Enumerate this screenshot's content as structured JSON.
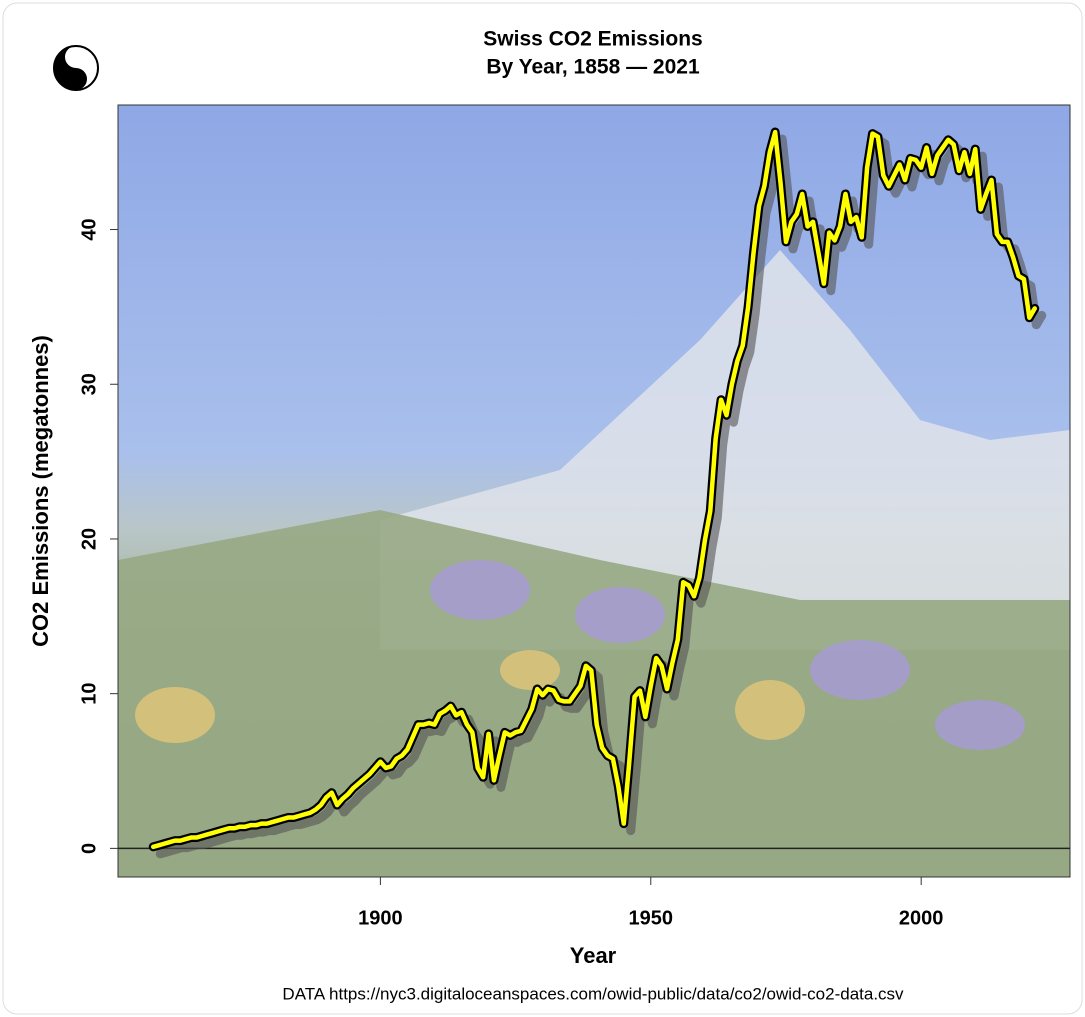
{
  "chart_data": {
    "type": "line",
    "title": "Swiss CO2 Emissions",
    "subtitle": "By Year, 1858 — 2021",
    "x_label": "Year",
    "y_label": "CO2 Emissions (megatonnes)",
    "caption": "DATA https://nyc3.digitaloceanspaces.com/owid-public/data/co2/owid-co2-data.csv",
    "x": [
      1858,
      1859,
      1860,
      1861,
      1862,
      1863,
      1864,
      1865,
      1866,
      1867,
      1868,
      1869,
      1870,
      1871,
      1872,
      1873,
      1874,
      1875,
      1876,
      1877,
      1878,
      1879,
      1880,
      1881,
      1882,
      1883,
      1884,
      1885,
      1886,
      1887,
      1888,
      1889,
      1890,
      1891,
      1892,
      1893,
      1894,
      1895,
      1896,
      1897,
      1898,
      1899,
      1900,
      1901,
      1902,
      1903,
      1904,
      1905,
      1906,
      1907,
      1908,
      1909,
      1910,
      1911,
      1912,
      1913,
      1914,
      1915,
      1916,
      1917,
      1918,
      1919,
      1920,
      1921,
      1922,
      1923,
      1924,
      1925,
      1926,
      1927,
      1928,
      1929,
      1930,
      1931,
      1932,
      1933,
      1934,
      1935,
      1936,
      1937,
      1938,
      1939,
      1940,
      1941,
      1942,
      1943,
      1944,
      1945,
      1946,
      1947,
      1948,
      1949,
      1950,
      1951,
      1952,
      1953,
      1954,
      1955,
      1956,
      1957,
      1958,
      1959,
      1960,
      1961,
      1962,
      1963,
      1964,
      1965,
      1966,
      1967,
      1968,
      1969,
      1970,
      1971,
      1972,
      1973,
      1974,
      1975,
      1976,
      1977,
      1978,
      1979,
      1980,
      1981,
      1982,
      1983,
      1984,
      1985,
      1986,
      1987,
      1988,
      1989,
      1990,
      1991,
      1992,
      1993,
      1994,
      1995,
      1996,
      1997,
      1998,
      1999,
      2000,
      2001,
      2002,
      2003,
      2004,
      2005,
      2006,
      2007,
      2008,
      2009,
      2010,
      2011,
      2012,
      2013,
      2014,
      2015,
      2016,
      2017,
      2018,
      2019,
      2020,
      2021
    ],
    "series": [
      {
        "color": "#ffff00",
        "values": [
          0.1,
          0.2,
          0.3,
          0.4,
          0.5,
          0.5,
          0.6,
          0.7,
          0.7,
          0.8,
          0.9,
          1.0,
          1.1,
          1.2,
          1.3,
          1.3,
          1.4,
          1.4,
          1.5,
          1.5,
          1.6,
          1.6,
          1.7,
          1.8,
          1.9,
          2.0,
          2.0,
          2.1,
          2.2,
          2.3,
          2.5,
          2.8,
          3.3,
          3.6,
          2.8,
          3.2,
          3.5,
          3.9,
          4.2,
          4.5,
          4.8,
          5.2,
          5.6,
          5.2,
          5.3,
          5.8,
          6.0,
          6.4,
          7.2,
          8.0,
          8.0,
          8.1,
          8.0,
          8.7,
          8.9,
          9.2,
          8.6,
          8.8,
          8.0,
          7.5,
          5.2,
          4.6,
          7.4,
          4.4,
          6.0,
          7.5,
          7.3,
          7.5,
          7.6,
          8.3,
          9.0,
          10.3,
          9.9,
          10.3,
          10.2,
          9.6,
          9.5,
          9.5,
          10.0,
          10.5,
          11.8,
          11.5,
          8.0,
          6.5,
          6.0,
          5.8,
          4.0,
          1.6,
          5.5,
          9.8,
          10.2,
          8.5,
          10.5,
          12.3,
          11.8,
          10.3,
          12.0,
          13.5,
          17.2,
          17.0,
          16.3,
          17.5,
          19.9,
          21.8,
          26.5,
          29.0,
          28.0,
          30.0,
          31.5,
          32.5,
          35.0,
          38.5,
          41.5,
          42.8,
          45.0,
          46.3,
          43.0,
          39.2,
          40.5,
          41.0,
          42.3,
          40.2,
          40.5,
          38.5,
          36.5,
          39.8,
          39.3,
          40.2,
          42.3,
          40.5,
          40.8,
          39.5,
          44.0,
          46.2,
          46.0,
          43.5,
          42.8,
          43.5,
          44.2,
          43.2,
          44.6,
          44.5,
          44.0,
          45.3,
          43.6,
          44.8,
          45.3,
          45.8,
          45.5,
          43.8,
          45.0,
          43.6,
          45.2,
          41.3,
          42.3,
          43.2,
          39.7,
          39.2,
          39.2,
          38.2,
          37.0,
          36.8,
          34.3,
          34.9
        ]
      }
    ],
    "xlim": [
      1851.48,
      2027.52
    ],
    "xticks": [
      1900,
      1950,
      2000
    ],
    "ylim": [
      -1.85,
      48.05
    ],
    "yticks": [
      0,
      10,
      20,
      30,
      40
    ],
    "hline": 0
  }
}
